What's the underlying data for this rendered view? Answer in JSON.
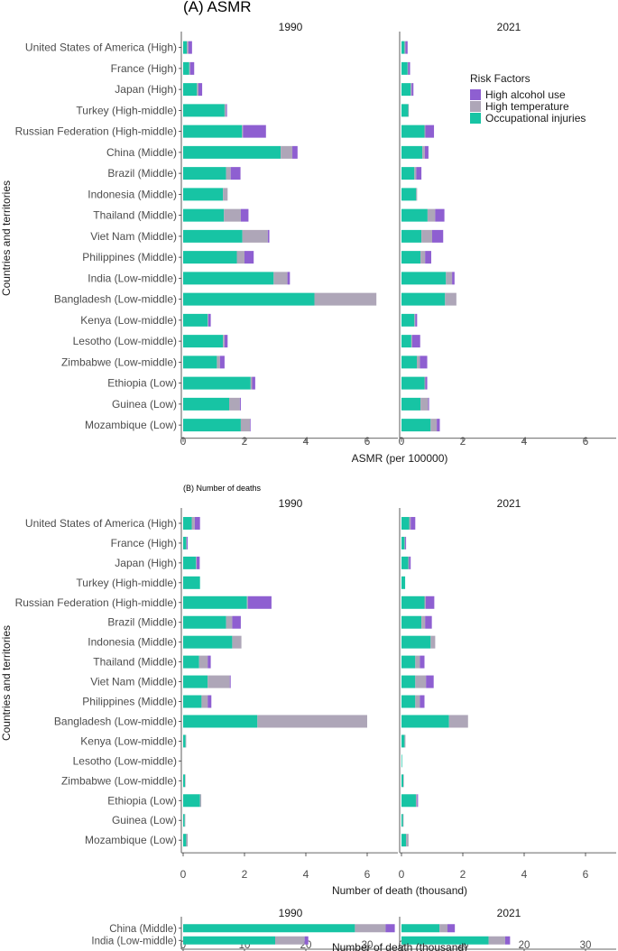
{
  "panel_a_title": "(A) ASMR",
  "panel_b_title": "(B) Number of deaths",
  "y_axis_label": "Countries and territories",
  "legend": {
    "title": "Risk Factors",
    "items": [
      {
        "name": "High alcohol use",
        "color": "#8e5fd1"
      },
      {
        "name": "High temperature",
        "color": "#aea6b8"
      },
      {
        "name": "Occupational injuries",
        "color": "#17c4a4"
      }
    ]
  },
  "chart_data": [
    {
      "id": "A",
      "type": "bar",
      "orientation": "horizontal",
      "stacked": true,
      "title": "(A) ASMR",
      "xlabel": "ASMR (per 100000)",
      "ylabel": "Countries and territories",
      "facets": [
        "1990",
        "2021"
      ],
      "xlim": [
        0,
        7
      ],
      "xticks": [
        0,
        2,
        4,
        6
      ],
      "stack_order": [
        "Occupational injuries",
        "High temperature",
        "High alcohol use"
      ],
      "categories": [
        "United States of America (High)",
        "France (High)",
        "Japan (High)",
        "Turkey (High-middle)",
        "Russian Federation (High-middle)",
        "China (Middle)",
        "Brazil (Middle)",
        "Indonesia (Middle)",
        "Thailand (Middle)",
        "Viet Nam (Middle)",
        "Philippines (Middle)",
        "India (Low-middle)",
        "Bangladesh (Low-middle)",
        "Kenya (Low-middle)",
        "Lesotho (Low-middle)",
        "Zimbabwe (Low-middle)",
        "Ethiopia (Low)",
        "Guinea (Low)",
        "Mozambique (Low)"
      ],
      "series": {
        "1990": [
          {
            "name": "Occupational injuries",
            "values": [
              0.12,
              0.2,
              0.45,
              1.35,
              1.92,
              3.18,
              1.4,
              1.3,
              1.33,
              1.93,
              1.75,
              2.95,
              4.28,
              0.8,
              1.3,
              1.1,
              2.2,
              1.5,
              1.88
            ]
          },
          {
            "name": "High temperature",
            "values": [
              0.05,
              0.03,
              0.05,
              0.05,
              0.03,
              0.38,
              0.15,
              0.15,
              0.55,
              0.83,
              0.25,
              0.45,
              2.02,
              0.02,
              0.05,
              0.1,
              0.05,
              0.35,
              0.3
            ]
          },
          {
            "name": "High alcohol use",
            "values": [
              0.12,
              0.13,
              0.12,
              0.03,
              0.75,
              0.17,
              0.32,
              0.0,
              0.25,
              0.05,
              0.3,
              0.08,
              0.0,
              0.08,
              0.1,
              0.15,
              0.1,
              0.03,
              0.02
            ]
          }
        ],
        "2021": [
          {
            "name": "Occupational injuries",
            "values": [
              0.1,
              0.2,
              0.3,
              0.22,
              0.75,
              0.68,
              0.42,
              0.48,
              0.85,
              0.65,
              0.62,
              1.45,
              1.42,
              0.42,
              0.32,
              0.5,
              0.75,
              0.62,
              0.95
            ]
          },
          {
            "name": "High temperature",
            "values": [
              0.03,
              0.02,
              0.03,
              0.02,
              0.03,
              0.08,
              0.06,
              0.03,
              0.25,
              0.35,
              0.15,
              0.2,
              0.37,
              0.03,
              0.03,
              0.1,
              0.03,
              0.25,
              0.2
            ]
          },
          {
            "name": "High alcohol use",
            "values": [
              0.07,
              0.06,
              0.06,
              0.0,
              0.28,
              0.12,
              0.17,
              0.0,
              0.3,
              0.36,
              0.2,
              0.08,
              0.0,
              0.06,
              0.26,
              0.24,
              0.06,
              0.03,
              0.1
            ]
          }
        ]
      }
    },
    {
      "id": "B",
      "type": "bar",
      "orientation": "horizontal",
      "stacked": true,
      "title": "(B) Number of deaths",
      "xlabel": "Number of death (thousand)",
      "ylabel": "Countries and territories",
      "facets": [
        "1990",
        "2021"
      ],
      "xlim": [
        0,
        7
      ],
      "xticks": [
        0,
        2,
        4,
        6
      ],
      "stack_order": [
        "Occupational injuries",
        "High temperature",
        "High alcohol use"
      ],
      "categories": [
        "United States of America (High)",
        "France (High)",
        "Japan (High)",
        "Turkey (High-middle)",
        "Russian Federation (High-middle)",
        "Brazil (Middle)",
        "Indonesia (Middle)",
        "Thailand (Middle)",
        "Viet Nam (Middle)",
        "Philippines (Middle)",
        "Bangladesh (Low-middle)",
        "Kenya (Low-middle)",
        "Lesotho (Low-middle)",
        "Zimbabwe (Low-middle)",
        "Ethiopia (Low)",
        "Guinea (Low)",
        "Mozambique (Low)"
      ],
      "series": {
        "1990": [
          {
            "name": "Occupational injuries",
            "values": [
              0.28,
              0.1,
              0.42,
              0.55,
              2.08,
              1.4,
              1.6,
              0.52,
              0.8,
              0.6,
              2.42,
              0.08,
              0.0,
              0.06,
              0.55,
              0.05,
              0.1
            ]
          },
          {
            "name": "High temperature",
            "values": [
              0.1,
              0.02,
              0.02,
              0.0,
              0.03,
              0.2,
              0.3,
              0.28,
              0.72,
              0.2,
              3.58,
              0.02,
              0.0,
              0.01,
              0.04,
              0.02,
              0.05
            ]
          },
          {
            "name": "High alcohol use",
            "values": [
              0.17,
              0.03,
              0.1,
              0.0,
              0.77,
              0.28,
              0.0,
              0.1,
              0.03,
              0.12,
              0.0,
              0.0,
              0.0,
              0.0,
              0.0,
              0.0,
              0.0
            ]
          }
        ],
        "2021": [
          {
            "name": "Occupational injuries",
            "values": [
              0.25,
              0.1,
              0.22,
              0.12,
              0.75,
              0.65,
              0.95,
              0.45,
              0.45,
              0.45,
              1.55,
              0.1,
              0.02,
              0.06,
              0.47,
              0.05,
              0.15
            ]
          },
          {
            "name": "High temperature",
            "values": [
              0.05,
              0.02,
              0.03,
              0.0,
              0.04,
              0.12,
              0.15,
              0.15,
              0.35,
              0.15,
              0.62,
              0.03,
              0.0,
              0.01,
              0.04,
              0.02,
              0.08
            ]
          },
          {
            "name": "High alcohol use",
            "values": [
              0.15,
              0.03,
              0.05,
              0.0,
              0.28,
              0.22,
              0.0,
              0.15,
              0.25,
              0.15,
              0.0,
              0.0,
              0.0,
              0.0,
              0.03,
              0.0,
              0.0
            ]
          }
        ]
      }
    },
    {
      "id": "B2",
      "type": "bar",
      "orientation": "horizontal",
      "stacked": true,
      "title": "",
      "xlabel": "Number of death (thousand)",
      "facets": [
        "1990",
        "2021"
      ],
      "xlim": [
        0,
        35
      ],
      "xticks": [
        0,
        10,
        20,
        30
      ],
      "stack_order": [
        "Occupational injuries",
        "High temperature",
        "High alcohol use"
      ],
      "categories": [
        "China (Middle)",
        "India (Low-middle)"
      ],
      "series": {
        "1990": [
          {
            "name": "Occupational injuries",
            "values": [
              28.0,
              15.0
            ]
          },
          {
            "name": "High temperature",
            "values": [
              5.0,
              4.8
            ]
          },
          {
            "name": "High alcohol use",
            "values": [
              1.5,
              0.6
            ]
          }
        ],
        "2021": [
          {
            "name": "Occupational injuries",
            "values": [
              6.2,
              14.2
            ]
          },
          {
            "name": "High temperature",
            "values": [
              1.3,
              2.7
            ]
          },
          {
            "name": "High alcohol use",
            "values": [
              1.2,
              0.8
            ]
          }
        ]
      }
    }
  ]
}
